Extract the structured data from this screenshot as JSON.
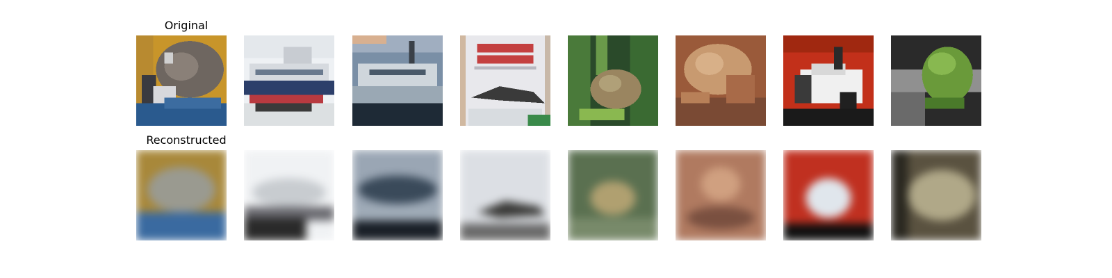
{
  "rows": {
    "original": {
      "title": "Original"
    },
    "reconstructed": {
      "title": "Reconstructed"
    }
  },
  "images": {
    "original": [
      {
        "subject": "cat",
        "colors": [
          "#c8952a",
          "#7a6a5e",
          "#3a5a8a"
        ]
      },
      {
        "subject": "ship",
        "colors": [
          "#eef1f4",
          "#2c3f6a",
          "#b83a40"
        ]
      },
      {
        "subject": "ship",
        "colors": [
          "#7a8fa6",
          "#cfd6dc",
          "#1e2a36"
        ]
      },
      {
        "subject": "airplane poster",
        "colors": [
          "#e8e8ec",
          "#c44040",
          "#3a3a3a"
        ]
      },
      {
        "subject": "frog",
        "colors": [
          "#4a7a3a",
          "#9a8560",
          "#2a4a2a"
        ]
      },
      {
        "subject": "frog",
        "colors": [
          "#9a5a3a",
          "#c89a70",
          "#5a3020"
        ]
      },
      {
        "subject": "car",
        "colors": [
          "#c2301a",
          "#f0f0f0",
          "#1a1a1a"
        ]
      },
      {
        "subject": "frog",
        "colors": [
          "#6a9a3a",
          "#909090",
          "#2a2a2a"
        ]
      }
    ],
    "reconstructed": [
      {
        "colors": [
          "#a8883a",
          "#9a9a90",
          "#3a6aa0"
        ]
      },
      {
        "colors": [
          "#f0f2f4",
          "#c8ccd0",
          "#2a2a2a"
        ]
      },
      {
        "colors": [
          "#9aa6b4",
          "#3a4a5a",
          "#1a2028"
        ]
      },
      {
        "colors": [
          "#dcdfe4",
          "#3a3a38",
          "#6a6a6a"
        ]
      },
      {
        "colors": [
          "#5a7050",
          "#b0a070",
          "#788a6a"
        ]
      },
      {
        "colors": [
          "#b07a60",
          "#d0a080",
          "#7a5040"
        ]
      },
      {
        "colors": [
          "#c03020",
          "#e0e6ec",
          "#101010"
        ]
      },
      {
        "colors": [
          "#5a5240",
          "#b0a888",
          "#2a2820"
        ]
      }
    ]
  }
}
